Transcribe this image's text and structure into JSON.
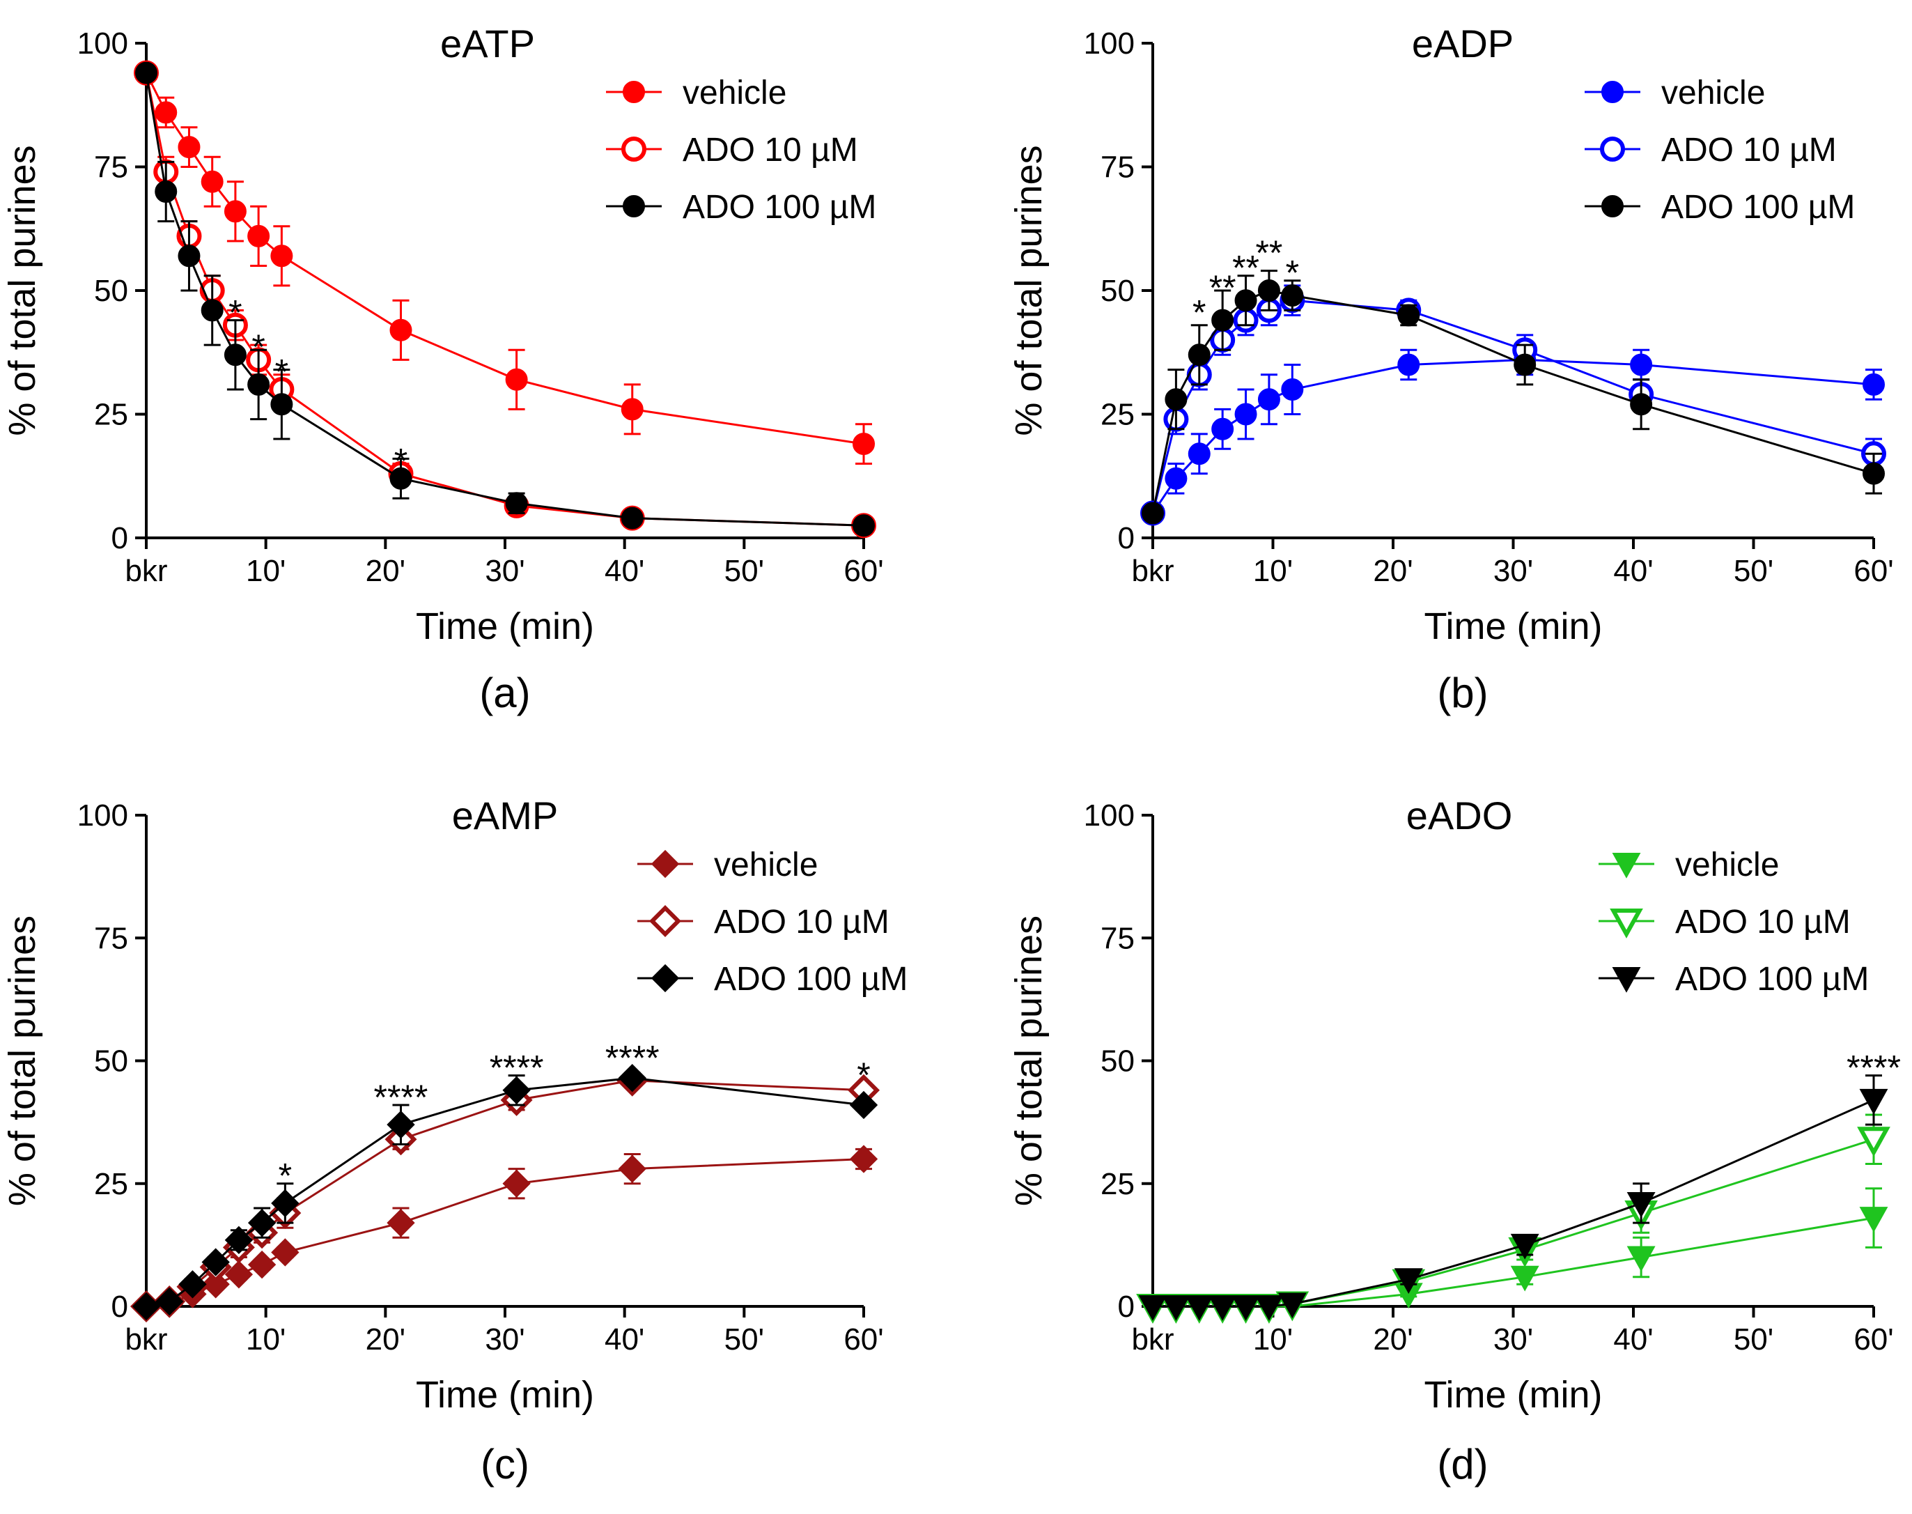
{
  "chart_data": [
    {
      "type": "line",
      "panel": "(a)",
      "title": "eATP",
      "xlabel": "Time (min)",
      "ylabel": "% of total purines",
      "ylim": [
        0,
        100
      ],
      "yticks": [
        0,
        25,
        50,
        75,
        100
      ],
      "xlim": [
        0,
        60
      ],
      "xticks": [
        0,
        10,
        20,
        30,
        40,
        50,
        60
      ],
      "xtick_labels": [
        "bkr",
        "10'",
        "20'",
        "30'",
        "40'",
        "50'",
        "60'"
      ],
      "legend_position": "top-right",
      "series": [
        {
          "name": "vehicle",
          "color": "#ff0000",
          "marker": "circle",
          "fill": "filled",
          "x": [
            0,
            1.7,
            3.7,
            5.7,
            7.7,
            9.7,
            11.7,
            22,
            32,
            42,
            62
          ],
          "y": [
            94,
            86,
            79,
            72,
            66,
            61,
            57,
            42,
            32,
            26,
            19
          ],
          "err": [
            0,
            3,
            4,
            5,
            6,
            6,
            6,
            6,
            6,
            5,
            4
          ]
        },
        {
          "name": "ADO 10 µM",
          "color": "#ff0000",
          "marker": "circle",
          "fill": "open",
          "x": [
            0,
            1.7,
            3.7,
            5.7,
            7.7,
            9.7,
            11.7,
            22,
            32,
            42,
            62
          ],
          "y": [
            94,
            74,
            61,
            50,
            43,
            36,
            30,
            13,
            6.5,
            4,
            2.5
          ],
          "err": [
            0,
            3,
            3,
            3,
            3,
            3,
            3,
            2,
            1,
            1,
            0.5
          ]
        },
        {
          "name": "ADO 100 µM",
          "color": "#000000",
          "marker": "circle",
          "fill": "filled",
          "x": [
            0,
            1.7,
            3.7,
            5.7,
            7.7,
            9.7,
            11.7,
            22,
            32,
            42,
            62
          ],
          "y": [
            94,
            70,
            57,
            46,
            37,
            31,
            27,
            12,
            7,
            4,
            2.5
          ],
          "err": [
            0,
            6,
            7,
            7,
            7,
            7,
            7,
            4,
            2,
            1,
            0.5
          ]
        }
      ],
      "significance": [
        {
          "x": 7.7,
          "y": 46,
          "text": "*"
        },
        {
          "x": 9.7,
          "y": 39,
          "text": "*"
        },
        {
          "x": 11.7,
          "y": 34,
          "text": "*"
        },
        {
          "x": 22,
          "y": 16,
          "text": "*"
        }
      ]
    },
    {
      "type": "line",
      "panel": "(b)",
      "title": "eADP",
      "xlabel": "Time (min)",
      "ylabel": "% of total purines",
      "ylim": [
        0,
        100
      ],
      "yticks": [
        0,
        25,
        50,
        75,
        100
      ],
      "xlim": [
        0,
        60
      ],
      "xticks": [
        0,
        10,
        20,
        30,
        40,
        50,
        60
      ],
      "xtick_labels": [
        "bkr",
        "10'",
        "20'",
        "30'",
        "40'",
        "50'",
        "60'"
      ],
      "legend_position": "top-right",
      "series": [
        {
          "name": "vehicle",
          "color": "#0000ff",
          "marker": "circle",
          "fill": "filled",
          "x": [
            0,
            2,
            4,
            6,
            8,
            10,
            12,
            22,
            32,
            42,
            62
          ],
          "y": [
            5,
            12,
            17,
            22,
            25,
            28,
            30,
            35,
            36,
            35,
            31
          ],
          "err": [
            0,
            3,
            4,
            4,
            5,
            5,
            5,
            3,
            3,
            3,
            3
          ]
        },
        {
          "name": "ADO 10 µM",
          "color": "#0000ff",
          "marker": "circle",
          "fill": "open",
          "x": [
            0,
            2,
            4,
            6,
            8,
            10,
            12,
            22,
            32,
            42,
            62
          ],
          "y": [
            5,
            24,
            33,
            40,
            44,
            46,
            48,
            46,
            38,
            29,
            17
          ],
          "err": [
            0,
            3,
            3,
            3,
            3,
            3,
            3,
            2,
            3,
            3,
            3
          ]
        },
        {
          "name": "ADO 100 µM",
          "color": "#000000",
          "marker": "circle",
          "fill": "filled",
          "x": [
            0,
            2,
            4,
            6,
            8,
            10,
            12,
            22,
            32,
            42,
            62
          ],
          "y": [
            5,
            28,
            37,
            44,
            48,
            50,
            49,
            45,
            35,
            27,
            13
          ],
          "err": [
            0,
            6,
            6,
            6,
            5,
            4,
            3,
            2,
            4,
            5,
            4
          ]
        }
      ],
      "significance": [
        {
          "x": 4,
          "y": 46,
          "text": "*"
        },
        {
          "x": 6,
          "y": 51,
          "text": "**"
        },
        {
          "x": 8,
          "y": 55,
          "text": "**"
        },
        {
          "x": 10,
          "y": 58,
          "text": "**"
        },
        {
          "x": 12,
          "y": 54,
          "text": "*"
        }
      ]
    },
    {
      "type": "line",
      "panel": "(c)",
      "title": "eAMP",
      "xlabel": "Time (min)",
      "ylabel": "% of total purines",
      "ylim": [
        0,
        100
      ],
      "yticks": [
        0,
        25,
        50,
        75,
        100
      ],
      "xlim": [
        0,
        60
      ],
      "xticks": [
        0,
        10,
        20,
        30,
        40,
        50,
        60
      ],
      "xtick_labels": [
        "bkr",
        "10'",
        "20'",
        "30'",
        "40'",
        "50'",
        "60'"
      ],
      "legend_position": "top-right",
      "series": [
        {
          "name": "vehicle",
          "color": "#9b1313",
          "marker": "diamond",
          "fill": "filled",
          "x": [
            0,
            2,
            4,
            6,
            8,
            10,
            12,
            22,
            32,
            42,
            62
          ],
          "y": [
            0,
            0.5,
            2.5,
            4.5,
            6.5,
            8.5,
            11,
            17,
            25,
            28,
            30
          ],
          "err": [
            0,
            0,
            0.5,
            0.5,
            1,
            1,
            1,
            3,
            3,
            3,
            2
          ]
        },
        {
          "name": "ADO 10 µM",
          "color": "#9b1313",
          "marker": "diamond",
          "fill": "open",
          "x": [
            0,
            2,
            4,
            6,
            8,
            10,
            12,
            22,
            32,
            42,
            62
          ],
          "y": [
            0,
            1,
            4,
            8,
            12,
            15,
            19,
            34,
            42,
            46,
            44
          ],
          "err": [
            0,
            0,
            1,
            1,
            2,
            2,
            3,
            2,
            2,
            1,
            1
          ]
        },
        {
          "name": "ADO 100 µM",
          "color": "#000000",
          "marker": "diamond",
          "fill": "filled",
          "x": [
            0,
            2,
            4,
            6,
            8,
            10,
            12,
            22,
            32,
            42,
            62
          ],
          "y": [
            0,
            1,
            4.5,
            9,
            13.5,
            17,
            21,
            37,
            44,
            46.5,
            41
          ],
          "err": [
            0,
            0,
            1,
            1,
            2,
            3,
            4,
            4,
            3,
            1,
            1
          ]
        }
      ],
      "significance": [
        {
          "x": 12,
          "y": 27,
          "text": "*"
        },
        {
          "x": 22,
          "y": 43,
          "text": "****"
        },
        {
          "x": 32,
          "y": 49,
          "text": "****"
        },
        {
          "x": 42,
          "y": 51,
          "text": "****"
        },
        {
          "x": 62,
          "y": 47.5,
          "text": "*"
        }
      ]
    },
    {
      "type": "line",
      "panel": "(d)",
      "title": "eADO",
      "xlabel": "Time (min)",
      "ylabel": "% of total purines",
      "ylim": [
        0,
        100
      ],
      "yticks": [
        0,
        25,
        50,
        75,
        100
      ],
      "xlim": [
        0,
        60
      ],
      "xticks": [
        0,
        10,
        20,
        30,
        40,
        50,
        60
      ],
      "xtick_labels": [
        "bkr",
        "10'",
        "20'",
        "30'",
        "40'",
        "50'",
        "60'"
      ],
      "legend_position": "top-right",
      "series": [
        {
          "name": "vehicle",
          "color": "#1fc41f",
          "marker": "triangle-down",
          "fill": "filled",
          "x": [
            0,
            2,
            4,
            6,
            8,
            10,
            12,
            22,
            32,
            42,
            62
          ],
          "y": [
            0,
            0,
            0,
            0,
            0,
            0,
            0,
            2.5,
            6,
            10,
            18
          ],
          "err": [
            0,
            0,
            0,
            0,
            0,
            0,
            0,
            0.5,
            1.5,
            4,
            6
          ]
        },
        {
          "name": "ADO 10 µM",
          "color": "#1fc41f",
          "marker": "triangle-down",
          "fill": "open",
          "x": [
            0,
            2,
            4,
            6,
            8,
            10,
            12,
            22,
            32,
            42,
            62
          ],
          "y": [
            0,
            0,
            0,
            0,
            0,
            0,
            0.5,
            5,
            11.5,
            19,
            34
          ],
          "err": [
            0,
            0,
            0,
            0,
            0,
            0,
            0,
            1,
            2,
            4,
            5
          ]
        },
        {
          "name": "ADO 100 µM",
          "color": "#000000",
          "marker": "triangle-down",
          "fill": "filled",
          "x": [
            0,
            2,
            4,
            6,
            8,
            10,
            12,
            22,
            32,
            42,
            62
          ],
          "y": [
            0,
            0,
            0,
            0,
            0,
            0,
            0.5,
            5.5,
            12.5,
            21,
            42
          ],
          "err": [
            0,
            0,
            0,
            0,
            0,
            0,
            0,
            1,
            2,
            4,
            5
          ]
        }
      ],
      "significance": [
        {
          "x": 62,
          "y": 49,
          "text": "****"
        }
      ]
    }
  ]
}
